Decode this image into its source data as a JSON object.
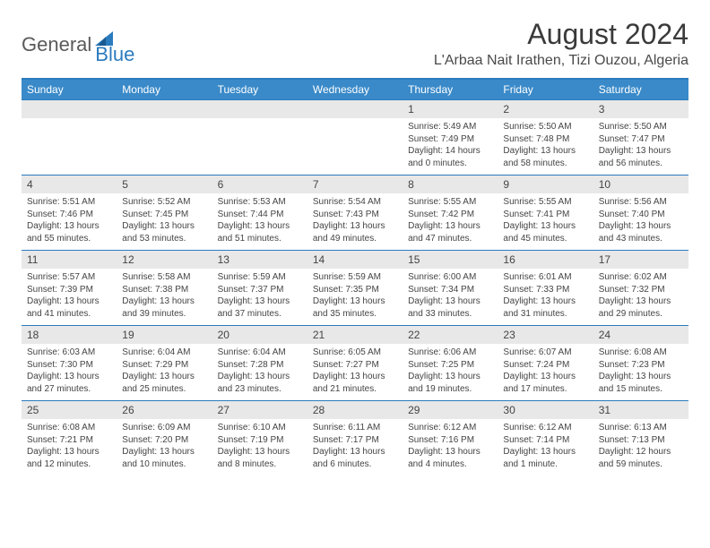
{
  "logo": {
    "general": "General",
    "blue": "Blue"
  },
  "title": "August 2024",
  "location": "L'Arbaa Nait Irathen, Tizi Ouzou, Algeria",
  "colors": {
    "header_bg": "#3a8ac9",
    "header_text": "#ffffff",
    "border": "#2b7bbf",
    "daynum_bg": "#e8e8e8",
    "text": "#444444",
    "logo_gray": "#5a5a5a",
    "logo_blue": "#2b7bbf"
  },
  "typography": {
    "title_fontsize": 32,
    "location_fontsize": 16,
    "dayname_fontsize": 12,
    "daynum_fontsize": 12,
    "detail_fontsize": 10
  },
  "day_names": [
    "Sunday",
    "Monday",
    "Tuesday",
    "Wednesday",
    "Thursday",
    "Friday",
    "Saturday"
  ],
  "weeks": [
    [
      {
        "num": "",
        "sunrise": "",
        "sunset": "",
        "daylight": ""
      },
      {
        "num": "",
        "sunrise": "",
        "sunset": "",
        "daylight": ""
      },
      {
        "num": "",
        "sunrise": "",
        "sunset": "",
        "daylight": ""
      },
      {
        "num": "",
        "sunrise": "",
        "sunset": "",
        "daylight": ""
      },
      {
        "num": "1",
        "sunrise": "Sunrise: 5:49 AM",
        "sunset": "Sunset: 7:49 PM",
        "daylight": "Daylight: 14 hours and 0 minutes."
      },
      {
        "num": "2",
        "sunrise": "Sunrise: 5:50 AM",
        "sunset": "Sunset: 7:48 PM",
        "daylight": "Daylight: 13 hours and 58 minutes."
      },
      {
        "num": "3",
        "sunrise": "Sunrise: 5:50 AM",
        "sunset": "Sunset: 7:47 PM",
        "daylight": "Daylight: 13 hours and 56 minutes."
      }
    ],
    [
      {
        "num": "4",
        "sunrise": "Sunrise: 5:51 AM",
        "sunset": "Sunset: 7:46 PM",
        "daylight": "Daylight: 13 hours and 55 minutes."
      },
      {
        "num": "5",
        "sunrise": "Sunrise: 5:52 AM",
        "sunset": "Sunset: 7:45 PM",
        "daylight": "Daylight: 13 hours and 53 minutes."
      },
      {
        "num": "6",
        "sunrise": "Sunrise: 5:53 AM",
        "sunset": "Sunset: 7:44 PM",
        "daylight": "Daylight: 13 hours and 51 minutes."
      },
      {
        "num": "7",
        "sunrise": "Sunrise: 5:54 AM",
        "sunset": "Sunset: 7:43 PM",
        "daylight": "Daylight: 13 hours and 49 minutes."
      },
      {
        "num": "8",
        "sunrise": "Sunrise: 5:55 AM",
        "sunset": "Sunset: 7:42 PM",
        "daylight": "Daylight: 13 hours and 47 minutes."
      },
      {
        "num": "9",
        "sunrise": "Sunrise: 5:55 AM",
        "sunset": "Sunset: 7:41 PM",
        "daylight": "Daylight: 13 hours and 45 minutes."
      },
      {
        "num": "10",
        "sunrise": "Sunrise: 5:56 AM",
        "sunset": "Sunset: 7:40 PM",
        "daylight": "Daylight: 13 hours and 43 minutes."
      }
    ],
    [
      {
        "num": "11",
        "sunrise": "Sunrise: 5:57 AM",
        "sunset": "Sunset: 7:39 PM",
        "daylight": "Daylight: 13 hours and 41 minutes."
      },
      {
        "num": "12",
        "sunrise": "Sunrise: 5:58 AM",
        "sunset": "Sunset: 7:38 PM",
        "daylight": "Daylight: 13 hours and 39 minutes."
      },
      {
        "num": "13",
        "sunrise": "Sunrise: 5:59 AM",
        "sunset": "Sunset: 7:37 PM",
        "daylight": "Daylight: 13 hours and 37 minutes."
      },
      {
        "num": "14",
        "sunrise": "Sunrise: 5:59 AM",
        "sunset": "Sunset: 7:35 PM",
        "daylight": "Daylight: 13 hours and 35 minutes."
      },
      {
        "num": "15",
        "sunrise": "Sunrise: 6:00 AM",
        "sunset": "Sunset: 7:34 PM",
        "daylight": "Daylight: 13 hours and 33 minutes."
      },
      {
        "num": "16",
        "sunrise": "Sunrise: 6:01 AM",
        "sunset": "Sunset: 7:33 PM",
        "daylight": "Daylight: 13 hours and 31 minutes."
      },
      {
        "num": "17",
        "sunrise": "Sunrise: 6:02 AM",
        "sunset": "Sunset: 7:32 PM",
        "daylight": "Daylight: 13 hours and 29 minutes."
      }
    ],
    [
      {
        "num": "18",
        "sunrise": "Sunrise: 6:03 AM",
        "sunset": "Sunset: 7:30 PM",
        "daylight": "Daylight: 13 hours and 27 minutes."
      },
      {
        "num": "19",
        "sunrise": "Sunrise: 6:04 AM",
        "sunset": "Sunset: 7:29 PM",
        "daylight": "Daylight: 13 hours and 25 minutes."
      },
      {
        "num": "20",
        "sunrise": "Sunrise: 6:04 AM",
        "sunset": "Sunset: 7:28 PM",
        "daylight": "Daylight: 13 hours and 23 minutes."
      },
      {
        "num": "21",
        "sunrise": "Sunrise: 6:05 AM",
        "sunset": "Sunset: 7:27 PM",
        "daylight": "Daylight: 13 hours and 21 minutes."
      },
      {
        "num": "22",
        "sunrise": "Sunrise: 6:06 AM",
        "sunset": "Sunset: 7:25 PM",
        "daylight": "Daylight: 13 hours and 19 minutes."
      },
      {
        "num": "23",
        "sunrise": "Sunrise: 6:07 AM",
        "sunset": "Sunset: 7:24 PM",
        "daylight": "Daylight: 13 hours and 17 minutes."
      },
      {
        "num": "24",
        "sunrise": "Sunrise: 6:08 AM",
        "sunset": "Sunset: 7:23 PM",
        "daylight": "Daylight: 13 hours and 15 minutes."
      }
    ],
    [
      {
        "num": "25",
        "sunrise": "Sunrise: 6:08 AM",
        "sunset": "Sunset: 7:21 PM",
        "daylight": "Daylight: 13 hours and 12 minutes."
      },
      {
        "num": "26",
        "sunrise": "Sunrise: 6:09 AM",
        "sunset": "Sunset: 7:20 PM",
        "daylight": "Daylight: 13 hours and 10 minutes."
      },
      {
        "num": "27",
        "sunrise": "Sunrise: 6:10 AM",
        "sunset": "Sunset: 7:19 PM",
        "daylight": "Daylight: 13 hours and 8 minutes."
      },
      {
        "num": "28",
        "sunrise": "Sunrise: 6:11 AM",
        "sunset": "Sunset: 7:17 PM",
        "daylight": "Daylight: 13 hours and 6 minutes."
      },
      {
        "num": "29",
        "sunrise": "Sunrise: 6:12 AM",
        "sunset": "Sunset: 7:16 PM",
        "daylight": "Daylight: 13 hours and 4 minutes."
      },
      {
        "num": "30",
        "sunrise": "Sunrise: 6:12 AM",
        "sunset": "Sunset: 7:14 PM",
        "daylight": "Daylight: 13 hours and 1 minute."
      },
      {
        "num": "31",
        "sunrise": "Sunrise: 6:13 AM",
        "sunset": "Sunset: 7:13 PM",
        "daylight": "Daylight: 12 hours and 59 minutes."
      }
    ]
  ]
}
